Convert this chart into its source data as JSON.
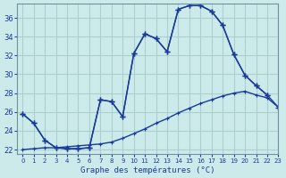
{
  "title": "Graphe des températures (°C)",
  "background_color": "#cceaea",
  "grid_color": "#aacfcf",
  "line_color": "#1a3a9a",
  "xlim": [
    -0.5,
    23
  ],
  "ylim": [
    21.5,
    37.5
  ],
  "xticks": [
    0,
    1,
    2,
    3,
    4,
    5,
    6,
    7,
    8,
    9,
    10,
    11,
    12,
    13,
    14,
    15,
    16,
    17,
    18,
    19,
    20,
    21,
    22,
    23
  ],
  "yticks": [
    22,
    24,
    26,
    28,
    30,
    32,
    34,
    36
  ],
  "temp_x": [
    0,
    1,
    2,
    3,
    4,
    5,
    6,
    7,
    8,
    9,
    10,
    11,
    12,
    13,
    14,
    15,
    16,
    17,
    18,
    19,
    20,
    21,
    22
  ],
  "temp_y": [
    25.8,
    24.8,
    23.0,
    22.2,
    22.1,
    22.1,
    22.2,
    27.3,
    27.1,
    25.5,
    32.2,
    34.3,
    33.8,
    32.4,
    36.9,
    37.3,
    37.3,
    36.7,
    35.2,
    32.1,
    29.9,
    28.8,
    27.8
  ],
  "minmax_x": [
    0,
    1,
    2,
    3,
    4,
    5,
    6,
    7,
    8,
    9,
    10,
    11,
    12,
    13,
    14,
    15,
    16,
    17,
    18,
    19,
    20,
    21,
    22,
    23
  ],
  "minmax_y": [
    25.8,
    24.8,
    23.0,
    22.2,
    22.1,
    22.1,
    22.2,
    27.3,
    27.1,
    25.5,
    32.2,
    34.3,
    33.8,
    32.4,
    36.9,
    37.3,
    37.3,
    36.7,
    35.2,
    32.1,
    29.9,
    28.8,
    27.8,
    26.5
  ],
  "dew_x": [
    0,
    1,
    2,
    3,
    4,
    5,
    6,
    7,
    8,
    9,
    10,
    11,
    12,
    13,
    14,
    15,
    16,
    17,
    18,
    19,
    20,
    21,
    22,
    23
  ],
  "dew_y": [
    22.0,
    22.1,
    22.2,
    22.2,
    22.3,
    22.4,
    22.5,
    22.6,
    22.8,
    23.2,
    23.7,
    24.2,
    24.8,
    25.3,
    25.9,
    26.4,
    26.9,
    27.3,
    27.7,
    28.0,
    28.2,
    27.8,
    27.5,
    26.5
  ]
}
